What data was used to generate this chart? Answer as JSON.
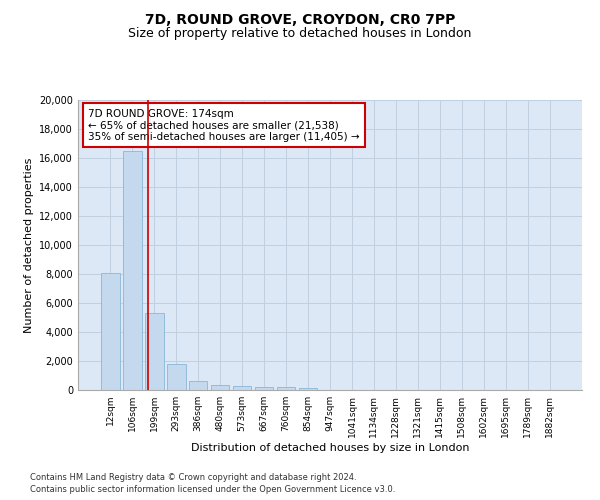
{
  "title_line1": "7D, ROUND GROVE, CROYDON, CR0 7PP",
  "title_line2": "Size of property relative to detached houses in London",
  "xlabel": "Distribution of detached houses by size in London",
  "ylabel": "Number of detached properties",
  "categories": [
    "12sqm",
    "106sqm",
    "199sqm",
    "293sqm",
    "386sqm",
    "480sqm",
    "573sqm",
    "667sqm",
    "760sqm",
    "854sqm",
    "947sqm",
    "1041sqm",
    "1134sqm",
    "1228sqm",
    "1321sqm",
    "1415sqm",
    "1508sqm",
    "1602sqm",
    "1695sqm",
    "1789sqm",
    "1882sqm"
  ],
  "values": [
    8100,
    16500,
    5300,
    1800,
    650,
    350,
    270,
    220,
    180,
    150,
    0,
    0,
    0,
    0,
    0,
    0,
    0,
    0,
    0,
    0,
    0
  ],
  "bar_color": "#c5d9ee",
  "bar_edge_color": "#7bafd4",
  "grid_color": "#c0d0e0",
  "background_color": "#dce8f5",
  "vline_x": 1.72,
  "vline_color": "#cc0000",
  "annotation_text": "7D ROUND GROVE: 174sqm\n← 65% of detached houses are smaller (21,538)\n35% of semi-detached houses are larger (11,405) →",
  "annotation_box_facecolor": "#ffffff",
  "annotation_box_edgecolor": "#cc0000",
  "ylim": [
    0,
    20000
  ],
  "yticks": [
    0,
    2000,
    4000,
    6000,
    8000,
    10000,
    12000,
    14000,
    16000,
    18000,
    20000
  ],
  "footnote_line1": "Contains HM Land Registry data © Crown copyright and database right 2024.",
  "footnote_line2": "Contains public sector information licensed under the Open Government Licence v3.0.",
  "title_fontsize": 10,
  "subtitle_fontsize": 9,
  "tick_fontsize": 6.5,
  "ylabel_fontsize": 8,
  "xlabel_fontsize": 8,
  "annot_fontsize": 7.5,
  "footnote_fontsize": 6
}
